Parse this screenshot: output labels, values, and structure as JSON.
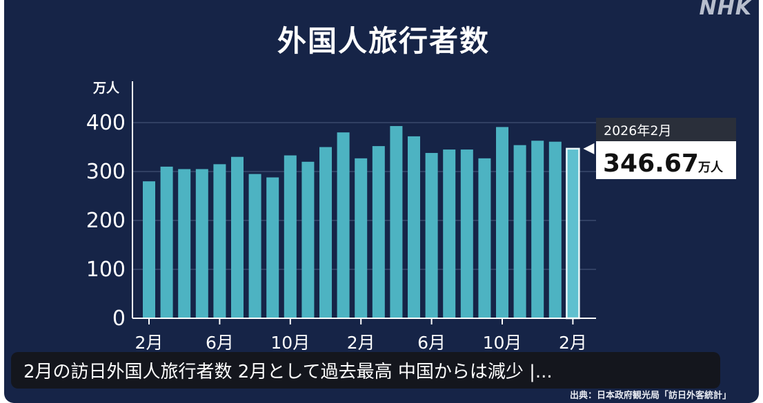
{
  "logo": "NHK",
  "caption": "2月の訪日外国人旅行者数 2月として過去最高 中国からは減少 |...",
  "source": "出典：日本政府観光局「訪日外客統計」",
  "colors": {
    "background": "#162447",
    "bar": "#4db3c2",
    "highlight_bar": "#e9f7f9",
    "grid": "#3a4a6d"
  },
  "chart_data": {
    "type": "bar",
    "title": "外国人旅行者数",
    "ylabel": "万人",
    "ylim": [
      0,
      400
    ],
    "yticks": [
      "0",
      "100",
      "200",
      "300",
      "400"
    ],
    "tick_labels": [
      "2月",
      "6月",
      "10月",
      "2月",
      "6月",
      "10月",
      "2月"
    ],
    "tick_indices": [
      0,
      4,
      8,
      12,
      16,
      20,
      24
    ],
    "values": [
      280,
      310,
      305,
      305,
      315,
      330,
      295,
      288,
      333,
      320,
      350,
      380,
      327,
      352,
      393,
      372,
      338,
      345,
      345,
      327,
      391,
      354,
      363,
      361,
      346.67
    ],
    "highlight_index": 24,
    "callout": {
      "date": "2026年2月",
      "value": "346.67",
      "unit": "万人"
    }
  }
}
